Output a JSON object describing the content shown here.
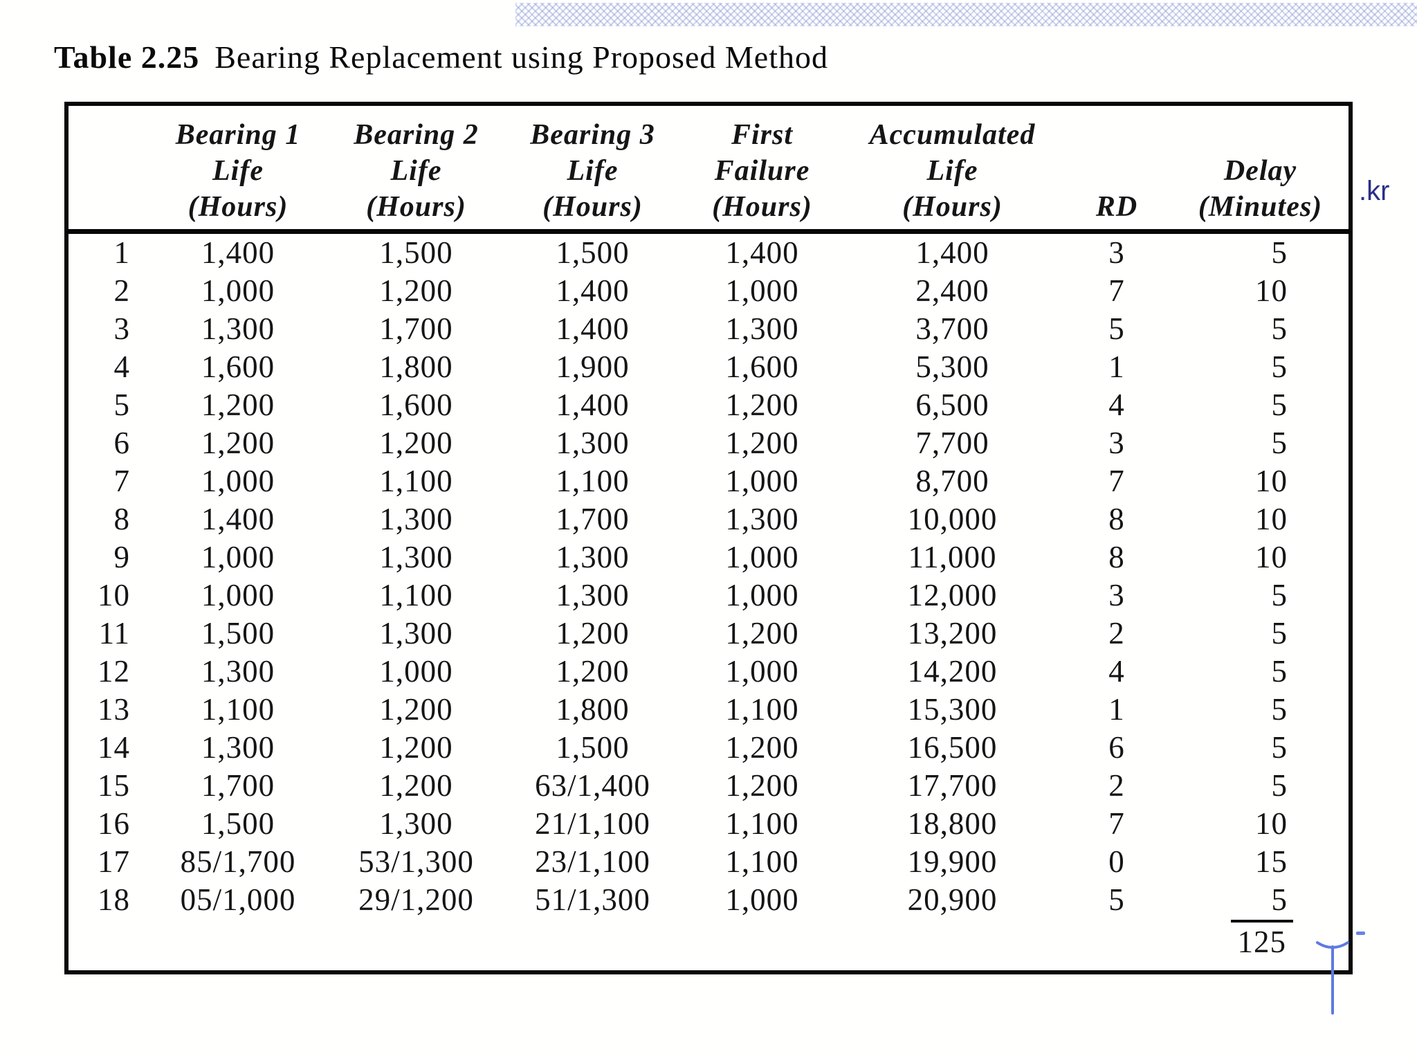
{
  "page": {
    "watermark": ".kr",
    "watermark_color": "#2b2f8a",
    "hatch_color": "#c9d1ec",
    "cursor_color": "#5f7ae0",
    "text_color": "#151515"
  },
  "table": {
    "title_label": "Table 2.25",
    "title_text": "Bearing Replacement using Proposed Method",
    "columns": [
      {
        "id": "n",
        "lines": []
      },
      {
        "id": "b1",
        "lines": [
          "Bearing 1",
          "Life",
          "(Hours)"
        ]
      },
      {
        "id": "b2",
        "lines": [
          "Bearing 2",
          "Life",
          "(Hours)"
        ]
      },
      {
        "id": "b3",
        "lines": [
          "Bearing 3",
          "Life",
          "(Hours)"
        ]
      },
      {
        "id": "ff",
        "lines": [
          "First",
          "Failure",
          "(Hours)"
        ]
      },
      {
        "id": "acc",
        "lines": [
          "Accumulated",
          "Life",
          "(Hours)"
        ]
      },
      {
        "id": "rd",
        "lines": [
          "RD"
        ]
      },
      {
        "id": "delay",
        "lines": [
          "Delay",
          "(Minutes)"
        ]
      }
    ],
    "rows": [
      {
        "n": "1",
        "b1": "1,400",
        "b2": "1,500",
        "b3": "1,500",
        "ff": "1,400",
        "acc": "1,400",
        "rd": "3",
        "delay": "5"
      },
      {
        "n": "2",
        "b1": "1,000",
        "b2": "1,200",
        "b3": "1,400",
        "ff": "1,000",
        "acc": "2,400",
        "rd": "7",
        "delay": "10"
      },
      {
        "n": "3",
        "b1": "1,300",
        "b2": "1,700",
        "b3": "1,400",
        "ff": "1,300",
        "acc": "3,700",
        "rd": "5",
        "delay": "5"
      },
      {
        "n": "4",
        "b1": "1,600",
        "b2": "1,800",
        "b3": "1,900",
        "ff": "1,600",
        "acc": "5,300",
        "rd": "1",
        "delay": "5"
      },
      {
        "n": "5",
        "b1": "1,200",
        "b2": "1,600",
        "b3": "1,400",
        "ff": "1,200",
        "acc": "6,500",
        "rd": "4",
        "delay": "5"
      },
      {
        "n": "6",
        "b1": "1,200",
        "b2": "1,200",
        "b3": "1,300",
        "ff": "1,200",
        "acc": "7,700",
        "rd": "3",
        "delay": "5"
      },
      {
        "n": "7",
        "b1": "1,000",
        "b2": "1,100",
        "b3": "1,100",
        "ff": "1,000",
        "acc": "8,700",
        "rd": "7",
        "delay": "10"
      },
      {
        "n": "8",
        "b1": "1,400",
        "b2": "1,300",
        "b3": "1,700",
        "ff": "1,300",
        "acc": "10,000",
        "rd": "8",
        "delay": "10"
      },
      {
        "n": "9",
        "b1": "1,000",
        "b2": "1,300",
        "b3": "1,300",
        "ff": "1,000",
        "acc": "11,000",
        "rd": "8",
        "delay": "10"
      },
      {
        "n": "10",
        "b1": "1,000",
        "b2": "1,100",
        "b3": "1,300",
        "ff": "1,000",
        "acc": "12,000",
        "rd": "3",
        "delay": "5"
      },
      {
        "n": "11",
        "b1": "1,500",
        "b2": "1,300",
        "b3": "1,200",
        "ff": "1,200",
        "acc": "13,200",
        "rd": "2",
        "delay": "5"
      },
      {
        "n": "12",
        "b1": "1,300",
        "b2": "1,000",
        "b3": "1,200",
        "ff": "1,000",
        "acc": "14,200",
        "rd": "4",
        "delay": "5"
      },
      {
        "n": "13",
        "b1": "1,100",
        "b2": "1,200",
        "b3": "1,800",
        "ff": "1,100",
        "acc": "15,300",
        "rd": "1",
        "delay": "5"
      },
      {
        "n": "14",
        "b1": "1,300",
        "b2": "1,200",
        "b3": "1,500",
        "ff": "1,200",
        "acc": "16,500",
        "rd": "6",
        "delay": "5"
      },
      {
        "n": "15",
        "b1": "1,700",
        "b2": "1,200",
        "b3": "63/1,400",
        "ff": "1,200",
        "acc": "17,700",
        "rd": "2",
        "delay": "5"
      },
      {
        "n": "16",
        "b1": "1,500",
        "b2": "1,300",
        "b3": "21/1,100",
        "ff": "1,100",
        "acc": "18,800",
        "rd": "7",
        "delay": "10"
      },
      {
        "n": "17",
        "b1": "85/1,700",
        "b2": "53/1,300",
        "b3": "23/1,100",
        "ff": "1,100",
        "acc": "19,900",
        "rd": "0",
        "delay": "15"
      },
      {
        "n": "18",
        "b1": "05/1,000",
        "b2": "29/1,200",
        "b3": "51/1,300",
        "ff": "1,000",
        "acc": "20,900",
        "rd": "5",
        "delay": "5"
      }
    ],
    "total_delay": "125"
  }
}
